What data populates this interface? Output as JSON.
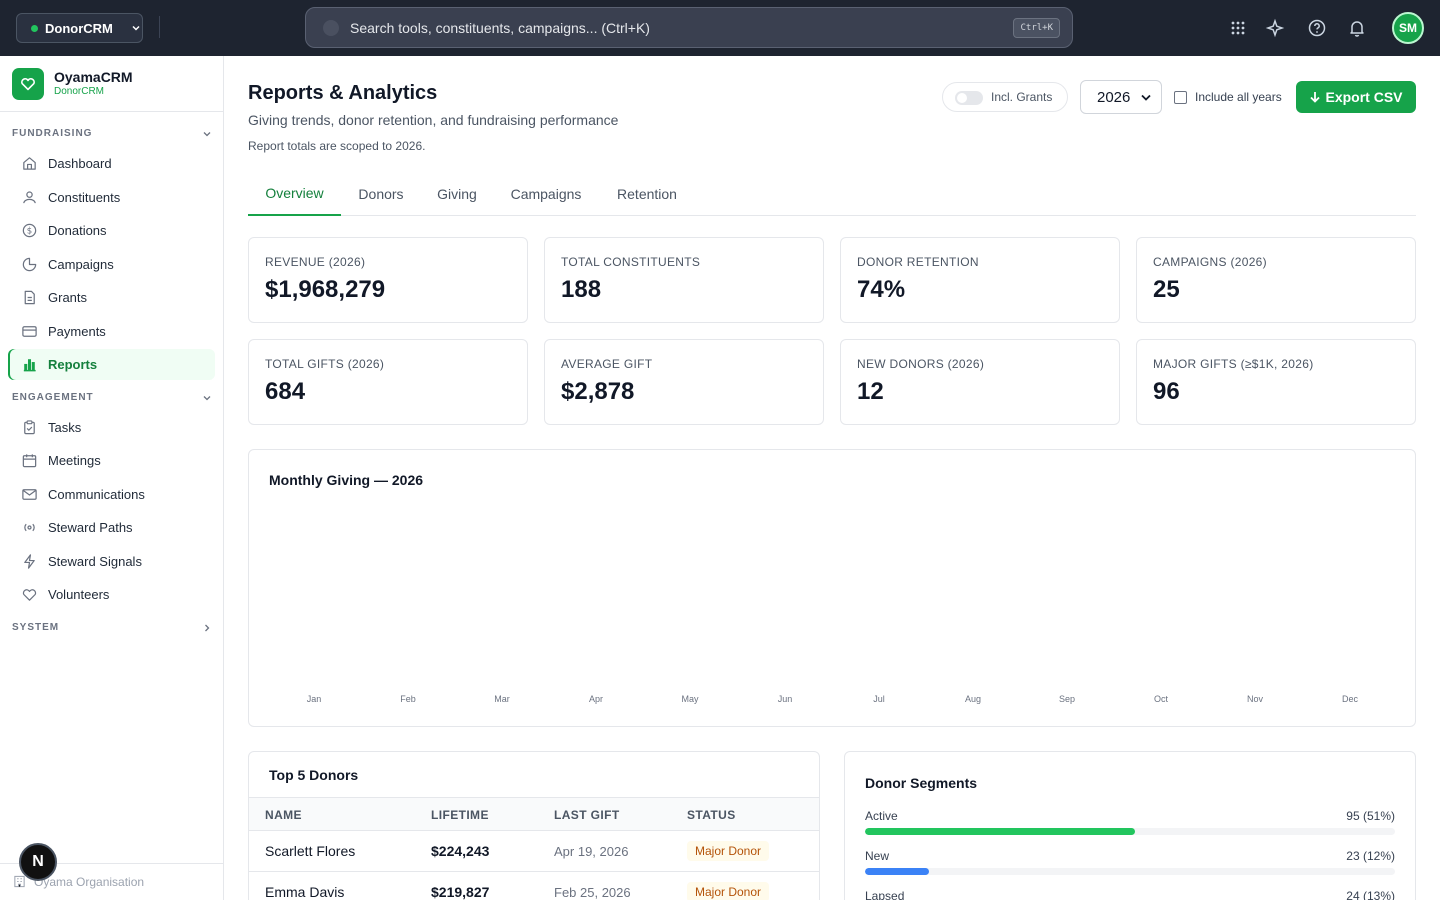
{
  "topbar": {
    "app_name": "DonorCRM",
    "search_placeholder": "Search tools, constituents, campaigns... (Ctrl+K)",
    "search_shortcut": "Ctrl+K",
    "avatar_initials": "SM"
  },
  "sidebar": {
    "brand_name": "OyamaCRM",
    "brand_sub": "DonorCRM",
    "sections": {
      "fundraising": "FUNDRAISING",
      "engagement": "ENGAGEMENT",
      "system": "SYSTEM"
    },
    "fundraising_items": [
      {
        "label": "Dashboard",
        "icon": "home-icon"
      },
      {
        "label": "Constituents",
        "icon": "users-icon"
      },
      {
        "label": "Donations",
        "icon": "dollar-circle-icon"
      },
      {
        "label": "Campaigns",
        "icon": "pie-chart-icon"
      },
      {
        "label": "Grants",
        "icon": "document-icon"
      },
      {
        "label": "Payments",
        "icon": "credit-card-icon"
      },
      {
        "label": "Reports",
        "icon": "bar-chart-icon",
        "active": true
      }
    ],
    "engagement_items": [
      {
        "label": "Tasks",
        "icon": "clipboard-icon"
      },
      {
        "label": "Meetings",
        "icon": "calendar-icon"
      },
      {
        "label": "Communications",
        "icon": "mail-icon"
      },
      {
        "label": "Steward Paths",
        "icon": "radio-icon"
      },
      {
        "label": "Steward Signals",
        "icon": "lightning-icon"
      },
      {
        "label": "Volunteers",
        "icon": "heart-icon"
      }
    ],
    "org_name": "Oyama Organisation",
    "n_badge": "N"
  },
  "header": {
    "title": "Reports & Analytics",
    "subtitle": "Giving trends, donor retention, and fundraising performance",
    "scope_note": "Report totals are scoped to 2026.",
    "grants_toggle_label": "Incl. Grants",
    "year": "2026",
    "all_years_label": "Include all years",
    "export_label": "Export CSV"
  },
  "tabs": [
    "Overview",
    "Donors",
    "Giving",
    "Campaigns",
    "Retention"
  ],
  "stats": [
    {
      "label": "REVENUE (2026)",
      "value": "$1,968,279"
    },
    {
      "label": "TOTAL CONSTITUENTS",
      "value": "188"
    },
    {
      "label": "DONOR RETENTION",
      "value": "74%"
    },
    {
      "label": "CAMPAIGNS (2026)",
      "value": "25"
    },
    {
      "label": "TOTAL GIFTS (2026)",
      "value": "684"
    },
    {
      "label": "AVERAGE GIFT",
      "value": "$2,878"
    },
    {
      "label": "NEW DONORS (2026)",
      "value": "12"
    },
    {
      "label": "MAJOR GIFTS (≥$1K, 2026)",
      "value": "96"
    }
  ],
  "monthly_chart": {
    "title": "Monthly Giving — 2026",
    "months": [
      "Jan",
      "Feb",
      "Mar",
      "Apr",
      "May",
      "Jun",
      "Jul",
      "Aug",
      "Sep",
      "Oct",
      "Nov",
      "Dec"
    ]
  },
  "top_donors": {
    "title": "Top 5 Donors",
    "columns": [
      "NAME",
      "LIFETIME",
      "LAST GIFT",
      "STATUS"
    ],
    "rows": [
      {
        "name": "Scarlett Flores",
        "lifetime": "$224,243",
        "last_gift": "Apr 19, 2026",
        "status": "Major Donor"
      },
      {
        "name": "Emma Davis",
        "lifetime": "$219,827",
        "last_gift": "Feb 25, 2026",
        "status": "Major Donor"
      }
    ]
  },
  "donor_segments": {
    "title": "Donor Segments",
    "segments": [
      {
        "label": "Active",
        "count": "95 (51%)",
        "fraction": 0.51,
        "color": "#22c55e"
      },
      {
        "label": "New",
        "count": "23 (12%)",
        "fraction": 0.12,
        "color": "#3b82f6"
      },
      {
        "label": "Lapsed",
        "count": "24 (13%)",
        "fraction": 0.13,
        "color": "#f59e0b"
      }
    ]
  }
}
